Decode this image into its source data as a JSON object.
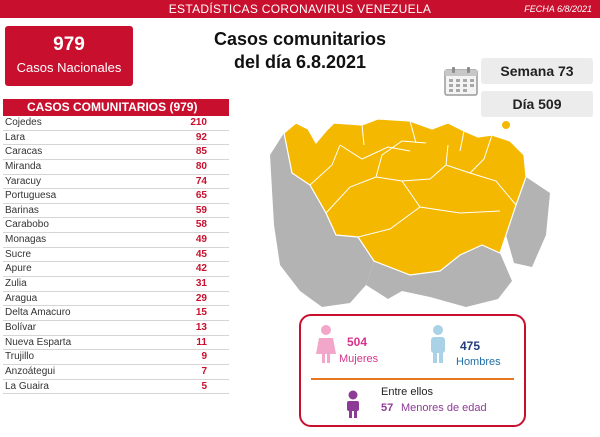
{
  "header": {
    "title": "ESTADÍSTICAS CORONAVIRUS VENEZUELA",
    "date": "FECHA 6/8/2021"
  },
  "national": {
    "count": "979",
    "label": "Casos Nacionales"
  },
  "headline": {
    "line1": "Casos comunitarios",
    "line2": "del día 6.8.2021"
  },
  "stats": {
    "week": "Semana 73",
    "day": "Día 509"
  },
  "list": {
    "title": "CASOS COMUNITARIOS (979)",
    "rows": [
      {
        "state": "Cojedes",
        "value": "210"
      },
      {
        "state": "Lara",
        "value": "92"
      },
      {
        "state": "Caracas",
        "value": "85"
      },
      {
        "state": "Miranda",
        "value": "80"
      },
      {
        "state": "Yaracuy",
        "value": "74"
      },
      {
        "state": "Portuguesa",
        "value": "65"
      },
      {
        "state": "Barinas",
        "value": "59"
      },
      {
        "state": "Carabobo",
        "value": "58"
      },
      {
        "state": "Monagas",
        "value": "49"
      },
      {
        "state": "Sucre",
        "value": "45"
      },
      {
        "state": "Apure",
        "value": "42"
      },
      {
        "state": "Zulia",
        "value": "31"
      },
      {
        "state": "Aragua",
        "value": "29"
      },
      {
        "state": "Delta Amacuro",
        "value": "15"
      },
      {
        "state": "Bolívar",
        "value": "13"
      },
      {
        "state": "Nueva Esparta",
        "value": "11"
      },
      {
        "state": "Trujillo",
        "value": "9"
      },
      {
        "state": "Anzoátegui",
        "value": "7"
      },
      {
        "state": "La Guaira",
        "value": "5"
      }
    ]
  },
  "gender": {
    "female_count": "504",
    "female_label": "Mujeres",
    "male_count": "475",
    "male_label": "Hombres",
    "among_label": "Entre ellos",
    "minors_count": "57",
    "minors_label": "Menores de edad"
  },
  "colors": {
    "brand_red": "#c8102e",
    "map_yellow": "#f5b800",
    "map_gray": "#b3b3b3",
    "female": "#d6338c",
    "male": "#1f6fa8",
    "minors": "#8c3b96",
    "divider": "#e87722"
  },
  "icons": [
    "calendar-icon",
    "female-icon",
    "male-icon",
    "child-icon"
  ]
}
